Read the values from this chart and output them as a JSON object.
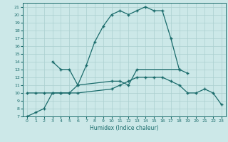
{
  "xlabel": "Humidex (Indice chaleur)",
  "xlim": [
    -0.5,
    23.5
  ],
  "ylim": [
    7,
    21.5
  ],
  "xticks": [
    0,
    1,
    2,
    3,
    4,
    5,
    6,
    7,
    8,
    9,
    10,
    11,
    12,
    13,
    14,
    15,
    16,
    17,
    18,
    19,
    20,
    21,
    22,
    23
  ],
  "yticks": [
    7,
    8,
    9,
    10,
    11,
    12,
    13,
    14,
    15,
    16,
    17,
    18,
    19,
    20,
    21
  ],
  "bg_color": "#cce8e8",
  "line_color": "#1a6b6b",
  "grid_color": "#aacfcf",
  "line1_x": [
    0,
    1,
    2,
    3,
    4,
    5,
    6,
    7,
    8,
    9,
    10,
    11,
    12,
    13,
    14,
    15,
    16,
    17,
    18
  ],
  "line1_y": [
    7.0,
    7.5,
    8.0,
    10.0,
    10.0,
    10.0,
    11.0,
    13.5,
    16.5,
    18.5,
    20.0,
    20.5,
    20.0,
    20.5,
    21.0,
    20.5,
    20.5,
    17.0,
    13.0
  ],
  "line2_x": [
    3,
    4,
    5,
    6,
    10,
    11,
    12,
    13,
    18,
    19
  ],
  "line2_y": [
    14.0,
    13.0,
    13.0,
    11.0,
    11.5,
    11.5,
    11.0,
    13.0,
    13.0,
    12.5
  ],
  "line3_x": [
    0,
    1,
    2,
    3,
    4,
    5,
    6,
    10,
    11,
    12,
    13,
    14,
    15,
    16,
    17,
    18,
    19,
    20,
    21,
    22,
    23
  ],
  "line3_y": [
    10.0,
    10.0,
    10.0,
    10.0,
    10.0,
    10.0,
    10.0,
    10.5,
    11.0,
    11.5,
    12.0,
    12.0,
    12.0,
    12.0,
    11.5,
    11.0,
    10.0,
    10.0,
    10.5,
    10.0,
    8.5
  ]
}
